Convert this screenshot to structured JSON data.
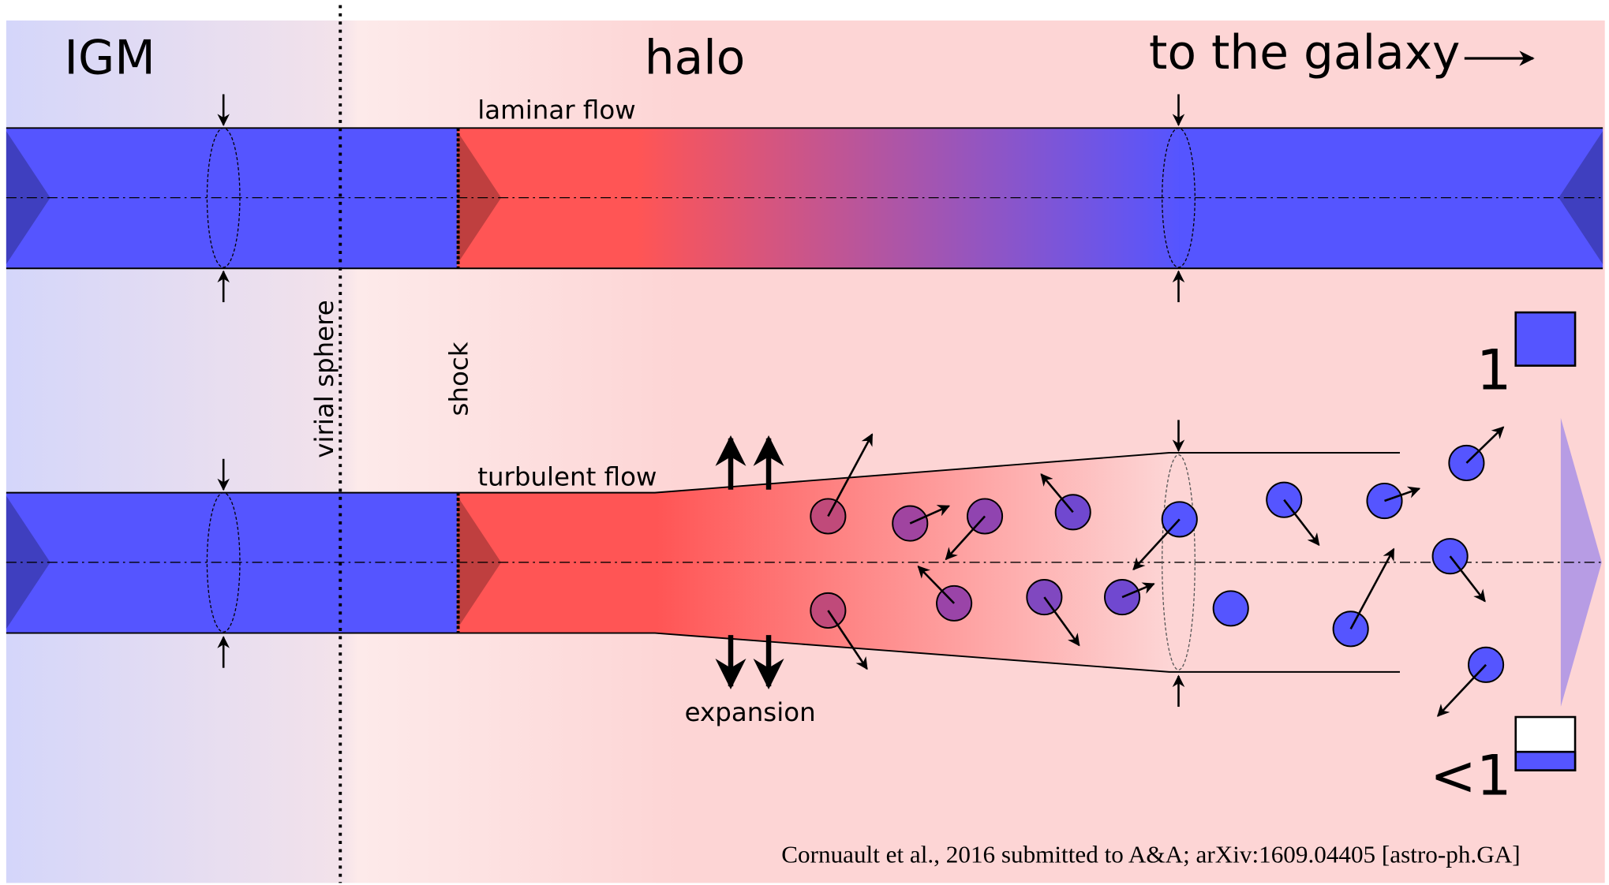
{
  "labels": {
    "igm": "IGM",
    "halo": "halo",
    "galaxy": "to the galaxy",
    "laminar": "laminar flow",
    "virial": "virial sphere",
    "shock": "shock",
    "turbulent": "turbulent flow",
    "expansion": "expansion",
    "full": "1",
    "partial": "<1",
    "citation": "Cornuault et al., 2016 submitted to A&A; arXiv:1609.04405 [astro-ph.GA]"
  }
}
